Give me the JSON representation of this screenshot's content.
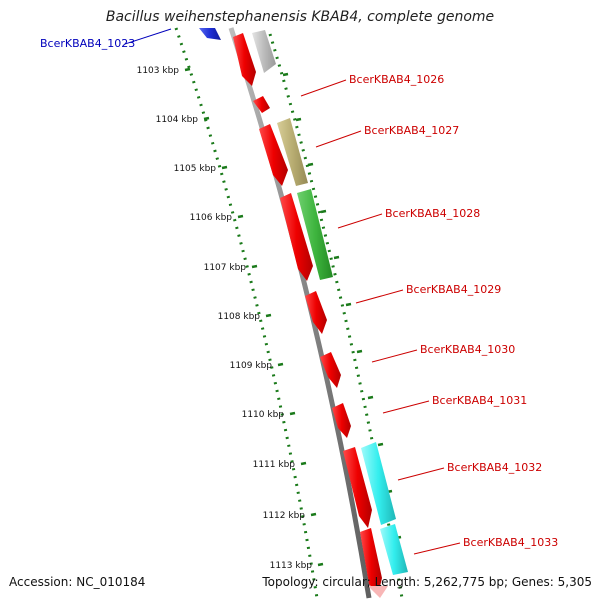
{
  "title": "Bacillus weihenstephanensis KBAB4, complete genome",
  "accession": "Accession: NC_010184",
  "summary": "Topology: circular; Length: 5,262,775 bp; Genes: 5,305",
  "colors": {
    "backbone": "#888888",
    "tick": "#1a7a1a",
    "gene_forward": "#ee0000",
    "label_red": "#cc0000",
    "label_blue": "#0000bb",
    "cog_gray": "#bbbbbb",
    "cog_khaki": "#b8ad72",
    "cog_green": "#3fb53f",
    "cog_cyan": "#33eeee",
    "cog_blue": "#1e2fd6"
  },
  "scale_labels": [
    "1103 kbp",
    "1104 kbp",
    "1105 kbp",
    "1106 kbp",
    "1107 kbp",
    "1108 kbp",
    "1109 kbp",
    "1110 kbp",
    "1111 kbp",
    "1112 kbp",
    "1113 kbp"
  ],
  "gene_labels": [
    {
      "id": "g1023",
      "text": "BcerKBAB4_1023",
      "color": "blue"
    },
    {
      "id": "g1026",
      "text": "BcerKBAB4_1026",
      "color": "red"
    },
    {
      "id": "g1027",
      "text": "BcerKBAB4_1027",
      "color": "red"
    },
    {
      "id": "g1028",
      "text": "BcerKBAB4_1028",
      "color": "red"
    },
    {
      "id": "g1029",
      "text": "BcerKBAB4_1029",
      "color": "red"
    },
    {
      "id": "g1030",
      "text": "BcerKBAB4_1030",
      "color": "red"
    },
    {
      "id": "g1031",
      "text": "BcerKBAB4_1031",
      "color": "red"
    },
    {
      "id": "g1032",
      "text": "BcerKBAB4_1032",
      "color": "red"
    },
    {
      "id": "g1033",
      "text": "BcerKBAB4_1033",
      "color": "red"
    }
  ]
}
